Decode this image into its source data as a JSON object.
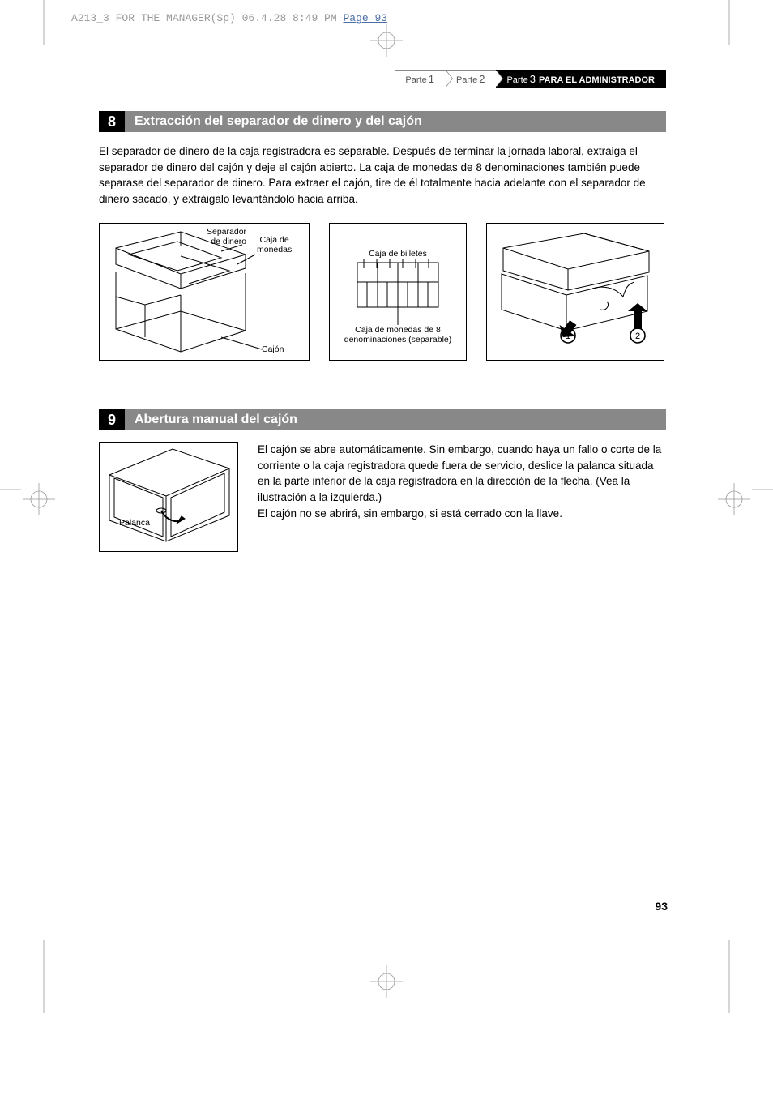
{
  "meta": {
    "crop_info": "A213_3 FOR THE MANAGER(Sp)  06.4.28 8:49 PM  ",
    "crop_page_link": "Page 93"
  },
  "breadcrumb": {
    "parte_label": "Parte",
    "num1": "1",
    "num2": "2",
    "num3": "3",
    "active_title": "PARA EL ADMINISTRADOR"
  },
  "section8": {
    "number": "8",
    "title": "Extracción del separador de dinero y del cajón",
    "body": "El separador de dinero de la caja registradora es separable. Después de terminar la jornada laboral, extraiga el separador de dinero del cajón y deje el cajón abierto. La caja de monedas de 8 denominaciones también puede separase del separador de dinero. Para extraer el cajón, tire de él totalmente hacia adelante con el separador de dinero sacado, y extráigalo levantándolo hacia arriba.",
    "fig1": {
      "label_separador": "Separador\nde dinero",
      "label_caja_monedas": "Caja de\nmonedas",
      "label_cajon": "Cajón"
    },
    "fig2": {
      "label_billetes": "Caja de billetes",
      "label_denom": "Caja de monedas de 8\ndenominaciones (separable)"
    },
    "fig3": {
      "step1": "1",
      "step2": "2"
    }
  },
  "section9": {
    "number": "9",
    "title": "Abertura manual del cajón",
    "fig4": {
      "label_palanca": "Palanca"
    },
    "body1": "El cajón se abre automáticamente. Sin embargo, cuando haya un fallo o corte de la corriente o la caja registradora quede fuera de servicio, deslice la palanca situada en la parte inferior de la caja registradora en la dirección de la flecha. (Vea la ilustración a la izquierda.)",
    "body2": "El cajón no se abrirá, sin embargo, si está cerrado con la llave."
  },
  "page_number": "93",
  "colors": {
    "header_bg": "#888888",
    "numbox_bg": "#000000",
    "text": "#000000",
    "crop": "#999999"
  }
}
